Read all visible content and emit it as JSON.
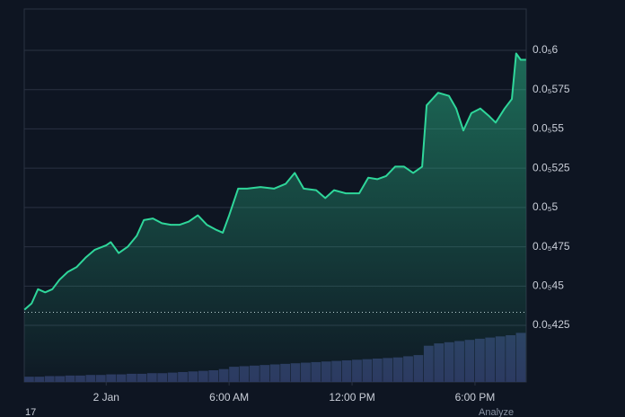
{
  "chart_data": {
    "type": "area",
    "x": [
      -3.99,
      -3.64,
      -3.33,
      -2.98,
      -2.63,
      -2.28,
      -1.88,
      -1.45,
      -1.01,
      -0.57,
      0,
      0.22,
      0.61,
      1.05,
      1.49,
      1.84,
      2.28,
      2.72,
      3.15,
      3.59,
      4.03,
      4.47,
      4.91,
      5.34,
      5.69,
      6.0,
      6.44,
      6.88,
      7.53,
      8.19,
      8.76,
      9.2,
      9.64,
      10.25,
      10.69,
      11.12,
      11.69,
      12.35,
      12.79,
      13.23,
      13.66,
      14.1,
      14.54,
      14.98,
      15.42,
      15.64,
      16.2,
      16.73,
      17.08,
      17.43,
      17.82,
      18.26,
      18.7,
      19.01,
      19.45,
      19.8,
      20.01,
      20.23,
      20.49
    ],
    "series": [
      {
        "color": "#2fd69a",
        "values": [
          4.35e-06,
          4.39e-06,
          4.48e-06,
          4.46e-06,
          4.48e-06,
          4.54e-06,
          4.59e-06,
          4.62e-06,
          4.68e-06,
          4.73e-06,
          4.76e-06,
          4.78e-06,
          4.71e-06,
          4.75e-06,
          4.82e-06,
          4.92e-06,
          4.93e-06,
          4.9e-06,
          4.89e-06,
          4.89e-06,
          4.91e-06,
          4.95e-06,
          4.89e-06,
          4.86e-06,
          4.84e-06,
          4.95e-06,
          5.12e-06,
          5.12e-06,
          5.13e-06,
          5.12e-06,
          5.15e-06,
          5.22e-06,
          5.12e-06,
          5.11e-06,
          5.06e-06,
          5.11e-06,
          5.09e-06,
          5.09e-06,
          5.19e-06,
          5.18e-06,
          5.2e-06,
          5.26e-06,
          5.26e-06,
          5.22e-06,
          5.26e-06,
          5.65e-06,
          5.73e-06,
          5.71e-06,
          5.63e-06,
          5.49e-06,
          5.6e-06,
          5.63e-06,
          5.58e-06,
          5.54e-06,
          5.63e-06,
          5.69e-06,
          5.98e-06,
          5.94e-06,
          5.94e-06
        ]
      }
    ],
    "baseline": 4.333e-06,
    "volume": {
      "color": "#2c3760",
      "axis": "y2",
      "x": [
        -3.75,
        -3.25,
        -2.75,
        -2.25,
        -1.75,
        -1.25,
        -0.75,
        -0.25,
        0.25,
        0.75,
        1.25,
        1.75,
        2.25,
        2.75,
        3.25,
        3.75,
        4.25,
        4.75,
        5.25,
        5.75,
        6.25,
        6.75,
        7.25,
        7.75,
        8.25,
        8.75,
        9.25,
        9.75,
        10.25,
        10.75,
        11.25,
        11.75,
        12.25,
        12.75,
        13.25,
        13.75,
        14.25,
        14.75,
        15.25,
        15.75,
        16.25,
        16.75,
        17.25,
        17.75,
        18.25,
        18.75,
        19.25,
        19.75,
        20.25
      ],
      "values": [
        9,
        9,
        10,
        10,
        11,
        11,
        12,
        12,
        13,
        13,
        14,
        14,
        15,
        15,
        16,
        17,
        18,
        19,
        20,
        22,
        26,
        27,
        28,
        29,
        30,
        31,
        32,
        33,
        34,
        35,
        36,
        37,
        38,
        39,
        40,
        41,
        42,
        44,
        46,
        62,
        66,
        68,
        70,
        72,
        74,
        76,
        78,
        80,
        84
      ]
    },
    "xlim": [
      -4,
      20.5
    ],
    "xticks": [
      {
        "value": 0,
        "label": "2 Jan"
      },
      {
        "value": 6,
        "label": "6:00 AM"
      },
      {
        "value": 12,
        "label": "12:00 PM"
      },
      {
        "value": 18,
        "label": "6:00 PM"
      }
    ],
    "ylim": [
      3.89e-06,
      6.263e-06
    ],
    "yticks": [
      {
        "value": 4.25e-06,
        "label": "0.0₅425"
      },
      {
        "value": 4.5e-06,
        "label": "0.0₅45"
      },
      {
        "value": 4.75e-06,
        "label": "0.0₅475"
      },
      {
        "value": 5e-06,
        "label": "0.0₅5"
      },
      {
        "value": 5.25e-06,
        "label": "0.0₅525"
      },
      {
        "value": 5.5e-06,
        "label": "0.0₅55"
      },
      {
        "value": 5.75e-06,
        "label": "0.0₅575"
      },
      {
        "value": 6e-06,
        "label": "0.0₅6"
      }
    ],
    "y2lim": [
      0,
      100
    ],
    "grid": true,
    "footer_left": "17",
    "footer_right": "Analyze"
  }
}
